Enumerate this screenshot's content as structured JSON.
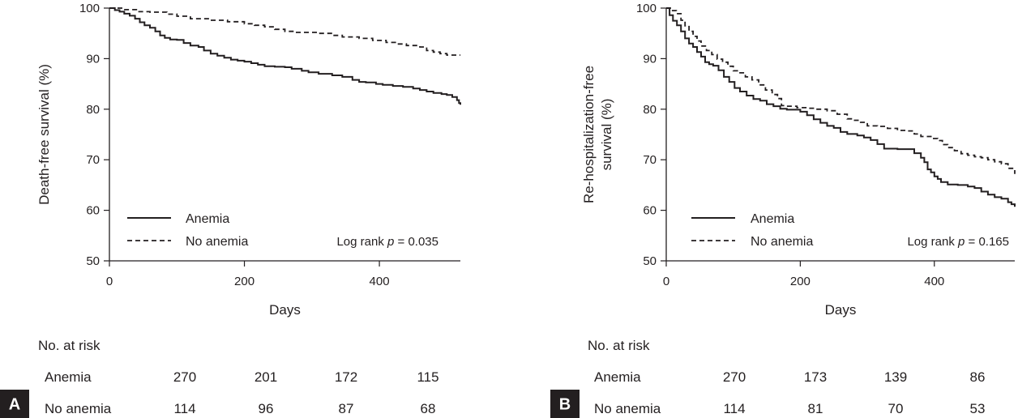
{
  "chart_data": [
    {
      "type": "line",
      "panel_label": "A",
      "title": "",
      "xlabel": "Days",
      "ylabel": "Death-free survival (%)",
      "xlim": [
        0,
        520
      ],
      "ylim": [
        50,
        100
      ],
      "xticks": [
        0,
        200,
        400
      ],
      "yticks": [
        50,
        60,
        70,
        80,
        90,
        100
      ],
      "series": [
        {
          "name": "Anemia",
          "style": "solid",
          "points": [
            [
              0,
              100
            ],
            [
              8,
              99.6
            ],
            [
              15,
              99.3
            ],
            [
              22,
              98.9
            ],
            [
              30,
              98.5
            ],
            [
              38,
              97.9
            ],
            [
              45,
              97.2
            ],
            [
              52,
              96.6
            ],
            [
              60,
              96.1
            ],
            [
              68,
              95.4
            ],
            [
              75,
              94.6
            ],
            [
              82,
              94.1
            ],
            [
              90,
              93.8
            ],
            [
              100,
              93.7
            ],
            [
              110,
              93.1
            ],
            [
              120,
              92.6
            ],
            [
              132,
              92.3
            ],
            [
              140,
              91.6
            ],
            [
              150,
              91.0
            ],
            [
              160,
              90.6
            ],
            [
              170,
              90.2
            ],
            [
              180,
              89.8
            ],
            [
              190,
              89.6
            ],
            [
              200,
              89.4
            ],
            [
              210,
              89.1
            ],
            [
              220,
              88.8
            ],
            [
              230,
              88.5
            ],
            [
              245,
              88.4
            ],
            [
              260,
              88.3
            ],
            [
              270,
              88.0
            ],
            [
              285,
              87.6
            ],
            [
              295,
              87.3
            ],
            [
              310,
              87.0
            ],
            [
              330,
              86.7
            ],
            [
              345,
              86.4
            ],
            [
              360,
              85.8
            ],
            [
              370,
              85.4
            ],
            [
              380,
              85.3
            ],
            [
              395,
              85.0
            ],
            [
              405,
              84.8
            ],
            [
              420,
              84.6
            ],
            [
              435,
              84.4
            ],
            [
              450,
              84.1
            ],
            [
              460,
              83.8
            ],
            [
              470,
              83.5
            ],
            [
              480,
              83.2
            ],
            [
              492,
              83.0
            ],
            [
              500,
              82.8
            ],
            [
              508,
              82.4
            ],
            [
              515,
              81.8
            ],
            [
              518,
              81.2
            ],
            [
              520,
              80.9
            ]
          ]
        },
        {
          "name": "No anemia",
          "style": "dashed",
          "points": [
            [
              0,
              100
            ],
            [
              20,
              99.7
            ],
            [
              40,
              99.3
            ],
            [
              60,
              99.2
            ],
            [
              85,
              98.8
            ],
            [
              100,
              98.4
            ],
            [
              120,
              97.9
            ],
            [
              150,
              97.6
            ],
            [
              175,
              97.3
            ],
            [
              200,
              96.9
            ],
            [
              215,
              96.6
            ],
            [
              230,
              96.3
            ],
            [
              245,
              95.8
            ],
            [
              260,
              95.4
            ],
            [
              275,
              95.2
            ],
            [
              310,
              95.0
            ],
            [
              330,
              94.6
            ],
            [
              345,
              94.3
            ],
            [
              370,
              94.0
            ],
            [
              390,
              93.6
            ],
            [
              410,
              93.2
            ],
            [
              425,
              92.9
            ],
            [
              440,
              92.6
            ],
            [
              460,
              92.3
            ],
            [
              470,
              91.6
            ],
            [
              480,
              91.3
            ],
            [
              490,
              91.0
            ],
            [
              500,
              90.7
            ],
            [
              520,
              90.7
            ]
          ]
        }
      ],
      "legend_position": "bottom-left",
      "annotation": {
        "prefix": "Log rank ",
        "variable": "p",
        "suffix": " = 0.035"
      },
      "risk_table": {
        "header": "No. at risk",
        "rows": [
          {
            "label": "Anemia",
            "values": [
              270,
              201,
              172,
              115
            ]
          },
          {
            "label": "No anemia",
            "values": [
              114,
              96,
              87,
              68
            ]
          }
        ]
      }
    },
    {
      "type": "line",
      "panel_label": "B",
      "title": "",
      "xlabel": "Days",
      "ylabel_lines": [
        "Re-hospitalization-free",
        "survival (%)"
      ],
      "xlim": [
        0,
        520
      ],
      "ylim": [
        50,
        100
      ],
      "xticks": [
        0,
        200,
        400
      ],
      "yticks": [
        50,
        60,
        70,
        80,
        90,
        100
      ],
      "series": [
        {
          "name": "Anemia",
          "style": "solid",
          "points": [
            [
              0,
              100
            ],
            [
              5,
              98.6
            ],
            [
              10,
              97.5
            ],
            [
              16,
              96.6
            ],
            [
              22,
              95.4
            ],
            [
              28,
              94.0
            ],
            [
              34,
              93.0
            ],
            [
              40,
              92.3
            ],
            [
              46,
              91.3
            ],
            [
              52,
              90.4
            ],
            [
              58,
              89.3
            ],
            [
              64,
              88.9
            ],
            [
              70,
              88.6
            ],
            [
              78,
              87.7
            ],
            [
              86,
              86.4
            ],
            [
              94,
              85.4
            ],
            [
              102,
              84.2
            ],
            [
              110,
              83.5
            ],
            [
              120,
              82.7
            ],
            [
              130,
              82.0
            ],
            [
              140,
              81.7
            ],
            [
              150,
              81.0
            ],
            [
              160,
              80.6
            ],
            [
              170,
              80.1
            ],
            [
              180,
              79.9
            ],
            [
              190,
              79.9
            ],
            [
              200,
              79.5
            ],
            [
              210,
              78.8
            ],
            [
              220,
              78.0
            ],
            [
              230,
              77.3
            ],
            [
              240,
              76.7
            ],
            [
              250,
              76.3
            ],
            [
              260,
              75.5
            ],
            [
              270,
              75.1
            ],
            [
              285,
              74.8
            ],
            [
              295,
              74.4
            ],
            [
              305,
              73.9
            ],
            [
              315,
              73.1
            ],
            [
              325,
              72.2
            ],
            [
              345,
              72.1
            ],
            [
              360,
              72.1
            ],
            [
              370,
              71.3
            ],
            [
              380,
              70.4
            ],
            [
              385,
              69.5
            ],
            [
              390,
              68.1
            ],
            [
              395,
              67.5
            ],
            [
              400,
              66.7
            ],
            [
              405,
              66.2
            ],
            [
              410,
              65.6
            ],
            [
              420,
              65.1
            ],
            [
              435,
              65.0
            ],
            [
              450,
              64.7
            ],
            [
              460,
              64.4
            ],
            [
              470,
              63.7
            ],
            [
              480,
              63.1
            ],
            [
              490,
              62.6
            ],
            [
              500,
              62.3
            ],
            [
              510,
              61.6
            ],
            [
              515,
              61.2
            ],
            [
              520,
              60.7
            ]
          ]
        },
        {
          "name": "No anemia",
          "style": "dashed",
          "points": [
            [
              0,
              100
            ],
            [
              8,
              99.5
            ],
            [
              15,
              98.9
            ],
            [
              22,
              97.6
            ],
            [
              28,
              96.5
            ],
            [
              34,
              95.4
            ],
            [
              40,
              94.4
            ],
            [
              46,
              93.5
            ],
            [
              52,
              92.5
            ],
            [
              60,
              91.6
            ],
            [
              68,
              90.8
            ],
            [
              76,
              89.9
            ],
            [
              84,
              89.3
            ],
            [
              92,
              88.5
            ],
            [
              100,
              87.6
            ],
            [
              108,
              87.2
            ],
            [
              118,
              86.4
            ],
            [
              128,
              85.8
            ],
            [
              138,
              84.8
            ],
            [
              148,
              83.8
            ],
            [
              158,
              82.9
            ],
            [
              166,
              82.1
            ],
            [
              172,
              80.7
            ],
            [
              180,
              80.6
            ],
            [
              195,
              80.3
            ],
            [
              210,
              80.2
            ],
            [
              225,
              80.0
            ],
            [
              240,
              79.7
            ],
            [
              255,
              79.0
            ],
            [
              270,
              78.1
            ],
            [
              280,
              77.8
            ],
            [
              290,
              77.4
            ],
            [
              300,
              76.7
            ],
            [
              315,
              76.6
            ],
            [
              330,
              76.2
            ],
            [
              345,
              75.8
            ],
            [
              360,
              75.7
            ],
            [
              370,
              75.1
            ],
            [
              380,
              74.6
            ],
            [
              395,
              74.2
            ],
            [
              405,
              73.8
            ],
            [
              412,
              73.0
            ],
            [
              420,
              72.4
            ],
            [
              430,
              71.8
            ],
            [
              440,
              71.2
            ],
            [
              450,
              70.9
            ],
            [
              460,
              70.6
            ],
            [
              470,
              70.4
            ],
            [
              480,
              70.0
            ],
            [
              490,
              69.6
            ],
            [
              500,
              69.2
            ],
            [
              510,
              68.3
            ],
            [
              520,
              67.2
            ]
          ]
        }
      ],
      "legend_position": "bottom-left",
      "annotation": {
        "prefix": "Log rank ",
        "variable": "p",
        "suffix": " = 0.165"
      },
      "risk_table": {
        "header": "No. at risk",
        "rows": [
          {
            "label": "Anemia",
            "values": [
              270,
              173,
              139,
              86
            ]
          },
          {
            "label": "No anemia",
            "values": [
              114,
              81,
              70,
              53
            ]
          }
        ]
      }
    }
  ],
  "colors": {
    "ink": "#231f20",
    "panel_badge": "#231f20",
    "background": "#ffffff"
  }
}
